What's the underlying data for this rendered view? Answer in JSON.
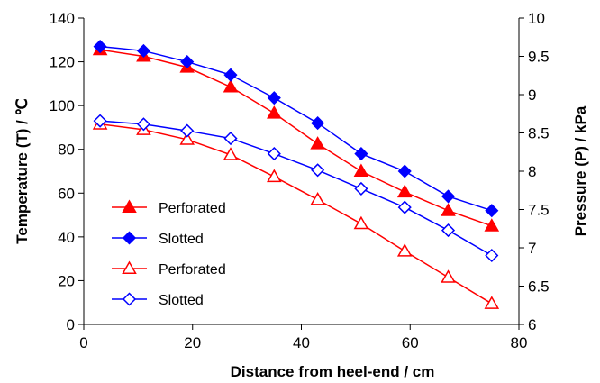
{
  "chart_data": {
    "type": "line",
    "xlabel": "Distance  from heel-end / cm",
    "ylabel_left": "Temperature (T) / ℃",
    "ylabel_right": "Pressure (P) / kPa",
    "xlim": [
      0,
      80
    ],
    "ylim_left": [
      0,
      140
    ],
    "ylim_right": [
      6,
      10
    ],
    "x_ticks": [
      0,
      20,
      40,
      60,
      80
    ],
    "y_ticks_left": [
      0,
      20,
      40,
      60,
      80,
      100,
      120,
      140
    ],
    "y_ticks_right": [
      6,
      6.5,
      7,
      7.5,
      8,
      8.5,
      9,
      9.5,
      10
    ],
    "x_tick_labels": [
      "0",
      "20",
      "40",
      "60",
      "80"
    ],
    "y_tick_labels_left": [
      "0",
      "20",
      "40",
      "60",
      "80",
      "100",
      "120",
      "140"
    ],
    "y_tick_labels_right": [
      "6",
      "6.5",
      "7",
      "7.5",
      "8",
      "8.5",
      "9",
      "9.5",
      "10"
    ],
    "grid": false,
    "legend_position": "bottom-left",
    "series": [
      {
        "name": "Perforated",
        "axis": "left",
        "marker": "triangle-filled",
        "color": "#ff0000",
        "x": [
          3,
          11,
          19,
          27,
          35,
          43,
          51,
          59,
          67,
          75
        ],
        "y": [
          125.5,
          122.5,
          117.5,
          108.5,
          96.5,
          82.5,
          70,
          60.5,
          52,
          45
        ]
      },
      {
        "name": "Slotted",
        "axis": "left",
        "marker": "diamond-filled",
        "color": "#0000ff",
        "x": [
          3,
          11,
          19,
          27,
          35,
          43,
          51,
          59,
          67,
          75
        ],
        "y": [
          127,
          125,
          120,
          114,
          103.5,
          92,
          78,
          70,
          58.5,
          52
        ]
      },
      {
        "name": "Perforated",
        "axis": "left",
        "marker": "triangle-open",
        "color": "#ff0000",
        "x": [
          3,
          11,
          19,
          27,
          35,
          43,
          51,
          59,
          67,
          75
        ],
        "y": [
          91.5,
          89,
          84.5,
          77.5,
          67.5,
          57,
          46,
          33.5,
          21.5,
          9.5
        ]
      },
      {
        "name": "Slotted",
        "axis": "left",
        "marker": "diamond-open",
        "color": "#0000ff",
        "x": [
          3,
          11,
          19,
          27,
          35,
          43,
          51,
          59,
          67,
          75
        ],
        "y": [
          93,
          91.5,
          88.5,
          85,
          78,
          70.5,
          62,
          53.5,
          43,
          31.5
        ]
      }
    ]
  }
}
